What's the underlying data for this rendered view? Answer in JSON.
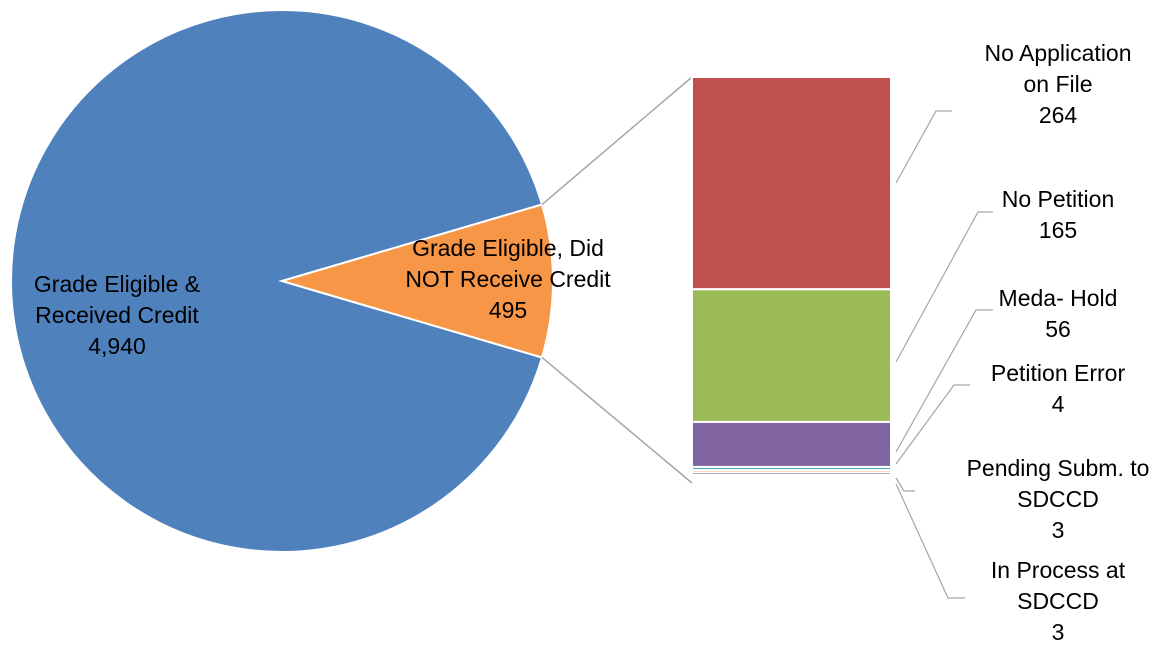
{
  "chart_data": {
    "type": "bar-of-pie",
    "pie": {
      "slices": [
        {
          "label_lines": [
            "Grade Eligible &",
            "Received Credit"
          ],
          "value": 4940,
          "value_text": "4,940",
          "color": "#4F81BD"
        },
        {
          "label_lines": [
            "Grade Eligible, Did",
            "NOT Receive Credit"
          ],
          "value": 495,
          "value_text": "495",
          "color": "#F79646"
        }
      ]
    },
    "bar": {
      "segments": [
        {
          "label_lines": [
            "No Application",
            "on File"
          ],
          "value": 264,
          "value_text": "264",
          "color": "#C0504D"
        },
        {
          "label_lines": [
            "No Petition"
          ],
          "value": 165,
          "value_text": "165",
          "color": "#9BBB59"
        },
        {
          "label_lines": [
            "Meda- Hold"
          ],
          "value": 56,
          "value_text": "56",
          "color": "#8064A2"
        },
        {
          "label_lines": [
            "Petition Error"
          ],
          "value": 4,
          "value_text": "4",
          "color": "#4BACC6"
        },
        {
          "label_lines": [
            "Pending Subm. to",
            "SDCCD"
          ],
          "value": 3,
          "value_text": "3",
          "color": "#F79646"
        },
        {
          "label_lines": [
            "In Process at",
            "SDCCD"
          ],
          "value": 3,
          "value_text": "3",
          "color": "#2C4D75"
        }
      ]
    }
  }
}
